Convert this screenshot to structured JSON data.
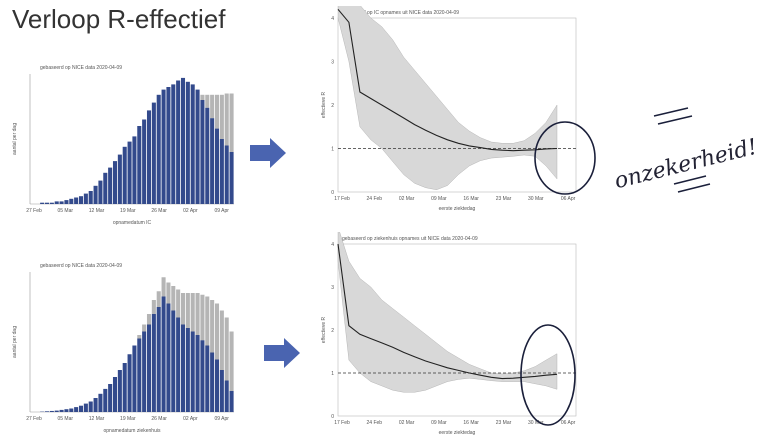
{
  "title": "Verloop R-effectief",
  "annotation": {
    "text": "onzekerheid!",
    "color": "#1a1f3a"
  },
  "colors": {
    "bar": "#334a8c",
    "bar_uncertain": "#b5b5b5",
    "band": "#d8d8d8",
    "line": "#222222",
    "arrow": "#4a64b0"
  },
  "chart_data": [
    {
      "type": "bar",
      "title": "gebaseerd op NICE data 2020-04-09",
      "xlabel": "opnamedatum IC",
      "ylabel": "aantal per dag",
      "x_ticks": [
        "27 Feb",
        "05 Mar",
        "12 Mar",
        "19 Mar",
        "26 Mar",
        "02 Apr",
        "09 Apr"
      ],
      "ylim": [
        0,
        100
      ],
      "values": [
        0,
        0,
        1,
        1,
        1,
        2,
        2,
        3,
        4,
        5,
        6,
        8,
        10,
        14,
        18,
        24,
        28,
        33,
        38,
        44,
        48,
        52,
        60,
        65,
        72,
        78,
        84,
        88,
        90,
        92,
        95,
        97,
        94,
        92,
        88,
        80,
        74,
        66,
        58,
        50,
        45,
        40
      ],
      "uncertain_tail": [
        0,
        0,
        0,
        0,
        0,
        0,
        0,
        0,
        0,
        0,
        0,
        0,
        0,
        0,
        0,
        0,
        0,
        0,
        0,
        0,
        0,
        0,
        0,
        0,
        0,
        0,
        0,
        0,
        0,
        0,
        0,
        0,
        0,
        0,
        0,
        4,
        10,
        18,
        26,
        34,
        40,
        45
      ]
    },
    {
      "type": "line",
      "title": "gebaseerd op IC opnames uit NICE data 2020-04-09",
      "xlabel": "eerste ziektedag",
      "ylabel": "effectieve R",
      "x_ticks": [
        "17 Feb",
        "24 Feb",
        "02 Mar",
        "09 Mar",
        "16 Mar",
        "23 Mar",
        "30 Mar",
        "06 Apr"
      ],
      "ylim": [
        0,
        4
      ],
      "reference_line": 1,
      "values": [
        4.2,
        3.9,
        2.3,
        2.15,
        2.0,
        1.85,
        1.7,
        1.55,
        1.42,
        1.3,
        1.2,
        1.12,
        1.06,
        1.02,
        0.98,
        0.96,
        0.95,
        0.96,
        0.97,
        0.99,
        1.0
      ],
      "lower": [
        4.0,
        3.0,
        1.5,
        1.2,
        1.0,
        0.7,
        0.4,
        0.2,
        0.1,
        0.05,
        0.15,
        0.4,
        0.6,
        0.72,
        0.78,
        0.8,
        0.82,
        0.85,
        0.82,
        0.6,
        0.3
      ],
      "upper": [
        4.4,
        4.4,
        4.3,
        4.0,
        3.8,
        3.5,
        3.1,
        2.8,
        2.5,
        2.2,
        1.9,
        1.6,
        1.4,
        1.25,
        1.15,
        1.12,
        1.12,
        1.18,
        1.35,
        1.6,
        2.0
      ]
    },
    {
      "type": "bar",
      "title": "gebaseerd op NICE data 2020-04-09",
      "xlabel": "opnamedatum ziekenhuis",
      "ylabel": "aantal per dag",
      "x_ticks": [
        "27 Feb",
        "05 Mar",
        "12 Mar",
        "19 Mar",
        "26 Mar",
        "02 Apr",
        "09 Apr"
      ],
      "ylim": [
        0,
        400
      ],
      "values": [
        0,
        0,
        1,
        2,
        3,
        4,
        6,
        8,
        10,
        14,
        18,
        24,
        30,
        40,
        52,
        66,
        80,
        100,
        120,
        140,
        165,
        190,
        210,
        230,
        250,
        280,
        300,
        330,
        310,
        290,
        270,
        250,
        240,
        230,
        220,
        205,
        190,
        170,
        150,
        120,
        90,
        60
      ],
      "uncertain_tail": [
        0,
        0,
        0,
        0,
        0,
        0,
        0,
        0,
        0,
        0,
        0,
        0,
        0,
        0,
        0,
        0,
        0,
        0,
        0,
        0,
        0,
        0,
        10,
        20,
        30,
        40,
        45,
        55,
        60,
        70,
        80,
        90,
        100,
        110,
        120,
        130,
        140,
        150,
        160,
        170,
        180,
        170
      ]
    },
    {
      "type": "line",
      "title": "gebaseerd op ziekenhuis opnames uit NICE data 2020-04-09",
      "xlabel": "eerste ziektedag",
      "ylabel": "effectieve R",
      "x_ticks": [
        "17 Feb",
        "24 Feb",
        "02 Mar",
        "09 Mar",
        "16 Mar",
        "23 Mar",
        "30 Mar",
        "06 Apr"
      ],
      "ylim": [
        0,
        4
      ],
      "reference_line": 1,
      "values": [
        4.0,
        2.1,
        1.9,
        1.8,
        1.7,
        1.6,
        1.48,
        1.38,
        1.28,
        1.2,
        1.12,
        1.06,
        1.0,
        0.95,
        0.9,
        0.87,
        0.88,
        0.9,
        0.92,
        0.95,
        0.97
      ],
      "lower": [
        3.6,
        1.3,
        1.0,
        0.8,
        0.7,
        0.6,
        0.55,
        0.55,
        0.6,
        0.7,
        0.8,
        0.85,
        0.88,
        0.85,
        0.82,
        0.8,
        0.8,
        0.8,
        0.75,
        0.7,
        0.62
      ],
      "upper": [
        4.4,
        3.6,
        3.2,
        3.0,
        2.7,
        2.5,
        2.3,
        2.1,
        1.9,
        1.7,
        1.5,
        1.35,
        1.2,
        1.1,
        1.0,
        0.98,
        1.0,
        1.05,
        1.15,
        1.3,
        1.45
      ]
    }
  ]
}
